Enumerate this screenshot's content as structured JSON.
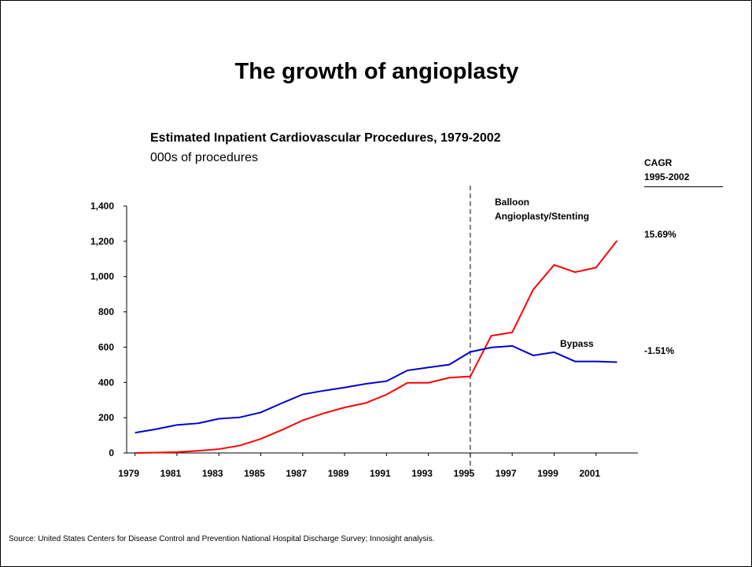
{
  "title": "The growth of angioplasty",
  "source": "Source: United States Centers for Disease Control and Prevention National Hospital Discharge Survey; Innosight analysis.",
  "chart_data": {
    "type": "line",
    "title": "Estimated Inpatient Cardiovascular Procedures, 1979-2002",
    "subtitle": "000s of procedures",
    "cagr_header": [
      "CAGR",
      "1995-2002"
    ],
    "x": [
      1979,
      1980,
      1981,
      1982,
      1983,
      1984,
      1985,
      1986,
      1987,
      1988,
      1989,
      1990,
      1991,
      1992,
      1993,
      1994,
      1995,
      1996,
      1997,
      1998,
      1999,
      2000,
      2001,
      2002
    ],
    "series": [
      {
        "name": "Balloon Angioplasty/Stenting",
        "color": "#ff0000",
        "cagr": "15.69%",
        "values": [
          0,
          2,
          5,
          12,
          22,
          42,
          80,
          130,
          185,
          225,
          258,
          283,
          331,
          398,
          398,
          427,
          434,
          664,
          684,
          926,
          1066,
          1025,
          1051,
          1204
        ]
      },
      {
        "name": "Bypass",
        "color": "#0000cc",
        "cagr": "-1.51%",
        "values": [
          115,
          135,
          159,
          168,
          194,
          202,
          230,
          282,
          332,
          353,
          371,
          392,
          407,
          468,
          485,
          501,
          573,
          598,
          607,
          553,
          571,
          519,
          519,
          515
        ]
      }
    ],
    "xlim": [
      1978.6,
      2003
    ],
    "xticks": [
      1979,
      1981,
      1983,
      1985,
      1987,
      1989,
      1991,
      1993,
      1995,
      1997,
      1999,
      2001
    ],
    "ylim": [
      0,
      1400
    ],
    "yticks": [
      0,
      200,
      400,
      600,
      800,
      {
        "value": 1000,
        "label": "1,000"
      },
      {
        "value": 1200,
        "label": "1,200"
      },
      {
        "value": 1400,
        "label": "1,400"
      }
    ],
    "vline": 1995,
    "grid": false
  }
}
